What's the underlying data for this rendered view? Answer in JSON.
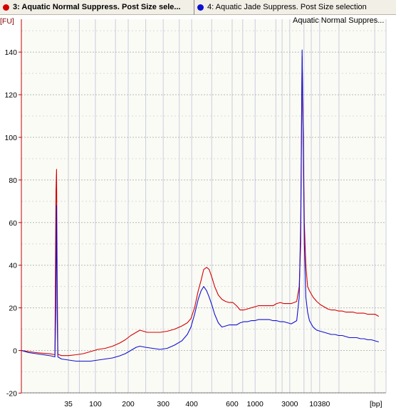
{
  "tabs": [
    {
      "label": "3: Aquatic Normal Suppress. Post Size sele...",
      "color": "#d40000",
      "active": true
    },
    {
      "label": "4: Aquatic Jade Suppress. Post Size selection",
      "color": "#1010d0",
      "active": false
    }
  ],
  "chart_data": {
    "type": "line",
    "legend_text": "Aquatic Normal Suppres...",
    "legend_position": "top-right",
    "ylabel_unit": "[FU]",
    "xlabel_unit": "[bp]",
    "ylim": [
      -20,
      150
    ],
    "yticks": [
      -20,
      0,
      20,
      40,
      60,
      80,
      100,
      120,
      140
    ],
    "xscale": "electropherogram-time",
    "xticks": [
      "35",
      "100",
      "200",
      "300",
      "400",
      "600",
      "1000",
      "3000",
      "10380"
    ],
    "grid": true,
    "series": [
      {
        "name": "3: Aquatic Normal Suppress. Post Size sele...",
        "color": "#d40000",
        "points": [
          [
            0,
            0
          ],
          [
            2,
            -0.5
          ],
          [
            4,
            -1
          ],
          [
            6,
            -1.3
          ],
          [
            8,
            -1.6
          ],
          [
            9.2,
            -2
          ],
          [
            9.5,
            75
          ],
          [
            9.65,
            85
          ],
          [
            9.8,
            40
          ],
          [
            10,
            -1.8
          ],
          [
            11,
            -2.4
          ],
          [
            13,
            -2.4
          ],
          [
            15,
            -2
          ],
          [
            17,
            -1.5
          ],
          [
            19,
            -0.5
          ],
          [
            21,
            0.5
          ],
          [
            23,
            1
          ],
          [
            25,
            2
          ],
          [
            27,
            3.5
          ],
          [
            28.5,
            5
          ],
          [
            30,
            7
          ],
          [
            31.5,
            8.5
          ],
          [
            32.5,
            9.5
          ],
          [
            33.5,
            9
          ],
          [
            34.5,
            8.5
          ],
          [
            36,
            8.5
          ],
          [
            38,
            8.5
          ],
          [
            40,
            9
          ],
          [
            42,
            10
          ],
          [
            44,
            11.5
          ],
          [
            45.5,
            13
          ],
          [
            46.5,
            15
          ],
          [
            47.5,
            20
          ],
          [
            48.5,
            28
          ],
          [
            49.3,
            33
          ],
          [
            50,
            38
          ],
          [
            50.8,
            39
          ],
          [
            51.5,
            38
          ],
          [
            52.3,
            34
          ],
          [
            53,
            30
          ],
          [
            54,
            26
          ],
          [
            55,
            24
          ],
          [
            56,
            23
          ],
          [
            57,
            22.5
          ],
          [
            58,
            22.5
          ],
          [
            59,
            21
          ],
          [
            60,
            19
          ],
          [
            61,
            19
          ],
          [
            62,
            19.5
          ],
          [
            63,
            20
          ],
          [
            64,
            20.5
          ],
          [
            65,
            21
          ],
          [
            66,
            21
          ],
          [
            67,
            21
          ],
          [
            68,
            21
          ],
          [
            69,
            21
          ],
          [
            70,
            22
          ],
          [
            71,
            22.5
          ],
          [
            72,
            22
          ],
          [
            73,
            22
          ],
          [
            74,
            22
          ],
          [
            75.5,
            23
          ],
          [
            76.2,
            30
          ],
          [
            76.6,
            50
          ],
          [
            77.0,
            138
          ],
          [
            77.3,
            100
          ],
          [
            77.6,
            60
          ],
          [
            78,
            40
          ],
          [
            78.5,
            30
          ],
          [
            79,
            28
          ],
          [
            80,
            25
          ],
          [
            81,
            23
          ],
          [
            82,
            21.5
          ],
          [
            83,
            20.5
          ],
          [
            84,
            19.5
          ],
          [
            85,
            19
          ],
          [
            86,
            19
          ],
          [
            87,
            18.5
          ],
          [
            88,
            18.5
          ],
          [
            89,
            18
          ],
          [
            90,
            18
          ],
          [
            91,
            18
          ],
          [
            92,
            17.5
          ],
          [
            93,
            17.5
          ],
          [
            94,
            17.5
          ],
          [
            95,
            17
          ],
          [
            96,
            17
          ],
          [
            97,
            17
          ],
          [
            98,
            16
          ]
        ]
      },
      {
        "name": "4: Aquatic Jade Suppress. Post Size selection",
        "color": "#1010d0",
        "points": [
          [
            0,
            0
          ],
          [
            2,
            -1
          ],
          [
            4,
            -1.5
          ],
          [
            6,
            -2
          ],
          [
            8,
            -2.5
          ],
          [
            9.2,
            -3
          ],
          [
            9.4,
            15
          ],
          [
            9.6,
            68
          ],
          [
            9.8,
            20
          ],
          [
            10,
            -3
          ],
          [
            11,
            -4
          ],
          [
            13,
            -4.5
          ],
          [
            15,
            -5
          ],
          [
            17,
            -5
          ],
          [
            19,
            -5
          ],
          [
            21,
            -4.5
          ],
          [
            23,
            -4
          ],
          [
            25,
            -3.5
          ],
          [
            27,
            -2.5
          ],
          [
            28.5,
            -1.5
          ],
          [
            30,
            0
          ],
          [
            31.5,
            1.5
          ],
          [
            32.5,
            2
          ],
          [
            34,
            1.5
          ],
          [
            36,
            1
          ],
          [
            38,
            0.5
          ],
          [
            40,
            1
          ],
          [
            42,
            2.5
          ],
          [
            44,
            4.5
          ],
          [
            45.5,
            7.5
          ],
          [
            46.5,
            11
          ],
          [
            47.5,
            17
          ],
          [
            48.5,
            24
          ],
          [
            49.3,
            28
          ],
          [
            50,
            30
          ],
          [
            50.8,
            28
          ],
          [
            51.5,
            25
          ],
          [
            52.3,
            21
          ],
          [
            53,
            17
          ],
          [
            54,
            13
          ],
          [
            55,
            11
          ],
          [
            56,
            11.5
          ],
          [
            57,
            12
          ],
          [
            58,
            12
          ],
          [
            59,
            12
          ],
          [
            60,
            13
          ],
          [
            61,
            13.5
          ],
          [
            62,
            13.5
          ],
          [
            63,
            14
          ],
          [
            64,
            14
          ],
          [
            65,
            14.5
          ],
          [
            66,
            14.5
          ],
          [
            67,
            14.5
          ],
          [
            68,
            14.5
          ],
          [
            69,
            14
          ],
          [
            70,
            14
          ],
          [
            71,
            13.5
          ],
          [
            72,
            13.5
          ],
          [
            73,
            13
          ],
          [
            74,
            12.5
          ],
          [
            75.5,
            14
          ],
          [
            76.2,
            25
          ],
          [
            76.6,
            60
          ],
          [
            77.0,
            141
          ],
          [
            77.3,
            95
          ],
          [
            77.6,
            50
          ],
          [
            78,
            25
          ],
          [
            78.5,
            18
          ],
          [
            79,
            14
          ],
          [
            80,
            11
          ],
          [
            81,
            9.5
          ],
          [
            82,
            9
          ],
          [
            83,
            8.5
          ],
          [
            84,
            8
          ],
          [
            85,
            7.5
          ],
          [
            86,
            7.5
          ],
          [
            87,
            7
          ],
          [
            88,
            7
          ],
          [
            89,
            6.5
          ],
          [
            90,
            6
          ],
          [
            91,
            6
          ],
          [
            92,
            6
          ],
          [
            93,
            5.5
          ],
          [
            94,
            5.5
          ],
          [
            95,
            5
          ],
          [
            96,
            5
          ],
          [
            97,
            4.5
          ],
          [
            98,
            4
          ]
        ]
      }
    ]
  }
}
